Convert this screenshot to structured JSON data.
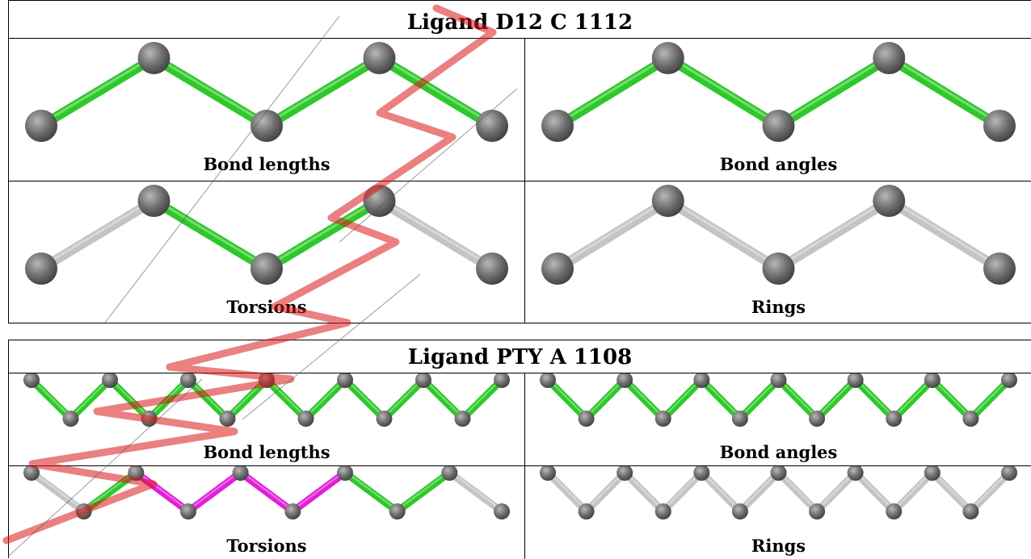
{
  "colors": {
    "ok": "#2ec82a",
    "outlier": "#e020d8",
    "none": "#c4c4c4",
    "atom": "#6e6e6e",
    "watermark": "#d81818"
  },
  "ligands": [
    {
      "title": "Ligand D12 C 1112",
      "panels": [
        {
          "caption": "Bond lengths",
          "bonds": [
            "ok",
            "ok",
            "ok",
            "ok"
          ]
        },
        {
          "caption": "Bond angles",
          "bonds": [
            "ok",
            "ok",
            "ok",
            "ok"
          ]
        },
        {
          "caption": "Torsions",
          "bonds": [
            "none",
            "ok",
            "ok",
            "none"
          ]
        },
        {
          "caption": "Rings",
          "bonds": [
            "none",
            "none",
            "none",
            "none"
          ]
        }
      ]
    },
    {
      "title": "Ligand PTY A 1108",
      "panels": [
        {
          "caption": "Bond lengths",
          "bonds": [
            "ok",
            "ok",
            "ok",
            "ok",
            "ok",
            "ok",
            "ok",
            "ok",
            "ok",
            "ok",
            "ok",
            "ok"
          ]
        },
        {
          "caption": "Bond angles",
          "bonds": [
            "ok",
            "ok",
            "ok",
            "ok",
            "ok",
            "ok",
            "ok",
            "ok",
            "ok",
            "ok",
            "ok",
            "ok"
          ]
        },
        {
          "caption": "Torsions",
          "bonds": [
            "none",
            "ok",
            "outlier",
            "outlier",
            "outlier",
            "outlier",
            "ok",
            "ok",
            "none"
          ]
        },
        {
          "caption": "Rings",
          "bonds": [
            "none",
            "none",
            "none",
            "none",
            "none",
            "none",
            "none",
            "none",
            "none",
            "none",
            "none",
            "none"
          ]
        }
      ]
    }
  ]
}
